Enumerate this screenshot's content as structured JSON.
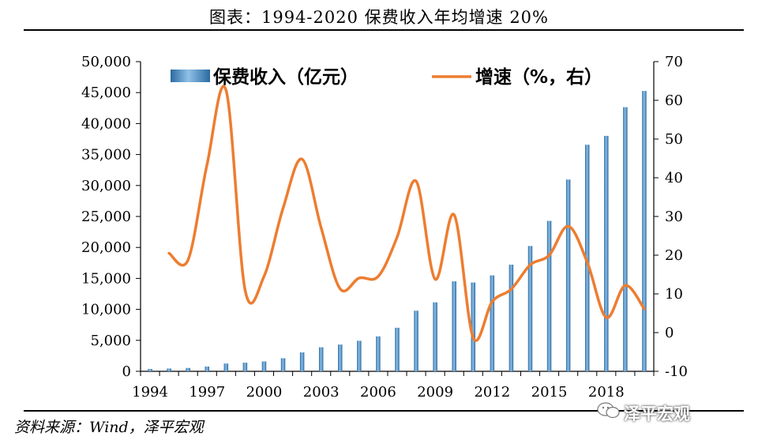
{
  "header": {
    "title": "图表：1994-2020 保费收入年均增速 20%"
  },
  "footer": {
    "source": "资料来源：Wind，泽平宏观",
    "watermark": "泽平宏观"
  },
  "colors": {
    "bar": "#4a8fc4",
    "line": "#ed7d31",
    "rule": "#000000"
  },
  "icons": {
    "watermark_icon": "wechat-icon"
  },
  "chart_data": {
    "type": "bar",
    "years": [
      1994,
      1995,
      1996,
      1997,
      1998,
      1999,
      2000,
      2001,
      2002,
      2003,
      2004,
      2005,
      2006,
      2007,
      2008,
      2009,
      2010,
      2011,
      2012,
      2013,
      2014,
      2015,
      2016,
      2017,
      2018,
      2019,
      2020
    ],
    "x_tick_labels": [
      "1994",
      "1997",
      "2000",
      "2003",
      "2006",
      "2009",
      "2012",
      "2015",
      "2018"
    ],
    "series": [
      {
        "name": "保费收入（亿元）",
        "type": "bar",
        "axis": "left",
        "values": [
          376,
          453,
          538,
          772,
          1255,
          1393,
          1596,
          2109,
          3054,
          3880,
          4318,
          4927,
          5641,
          7036,
          9784,
          11137,
          14528,
          14339,
          15488,
          17222,
          20235,
          24283,
          30959,
          36581,
          38017,
          42645,
          45257
        ]
      },
      {
        "name": "增速（%，右）",
        "type": "line",
        "axis": "right",
        "values": [
          null,
          20.5,
          18.8,
          43.5,
          62.6,
          11.0,
          14.6,
          32.2,
          44.8,
          27.1,
          11.3,
          14.1,
          14.5,
          24.7,
          39.1,
          13.8,
          30.4,
          -1.3,
          8.0,
          11.2,
          17.5,
          20.0,
          27.5,
          18.2,
          3.9,
          12.2,
          6.1
        ]
      }
    ],
    "y_left": {
      "min": 0,
      "max": 50000,
      "step": 5000,
      "tick_labels": [
        "0",
        "5,000",
        "10,000",
        "15,000",
        "20,000",
        "25,000",
        "30,000",
        "35,000",
        "40,000",
        "45,000",
        "50,000"
      ]
    },
    "y_right": {
      "min": -10,
      "max": 70,
      "step": 10,
      "tick_labels": [
        "-10",
        "0",
        "10",
        "20",
        "30",
        "40",
        "50",
        "60",
        "70"
      ]
    },
    "legend": {
      "position": "top"
    },
    "grid": false
  }
}
